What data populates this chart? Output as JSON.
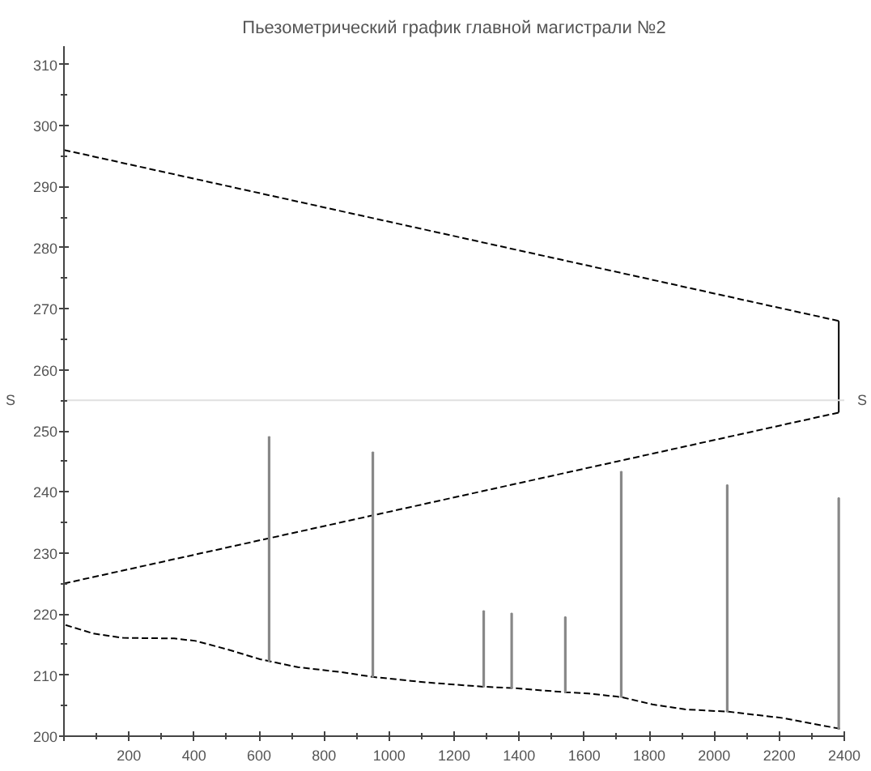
{
  "chart_data": {
    "type": "line",
    "title": "Пьезометрический график главной магистрали №2",
    "series": [
      {
        "color": "#000000",
        "line_style": "dashed",
        "x": [
          0,
          2383
        ],
        "values": [
          296,
          268
        ]
      },
      {
        "color": "#000000",
        "line_style": "dashed",
        "x": [
          0,
          2383
        ],
        "values": [
          225,
          253
        ]
      },
      {
        "color": "#000000",
        "line_style": "solid",
        "x": [
          2383,
          2383
        ],
        "values": [
          253,
          268
        ]
      },
      {
        "color": "#000000",
        "line_style": "dashed",
        "x": [
          5,
          91,
          182,
          339,
          405,
          504,
          603,
          719,
          851,
          950,
          1116,
          1289,
          1377,
          1542,
          1612,
          1714,
          1810,
          1909,
          2045,
          2207,
          2388
        ],
        "values": [
          218.2,
          216.8,
          216.1,
          216,
          215.6,
          214.2,
          212.6,
          211.3,
          210.5,
          209.7,
          208.8,
          208.1,
          207.9,
          207.2,
          207,
          206.4,
          205.2,
          204.4,
          204,
          203,
          201.2
        ]
      },
      {
        "type": "bar",
        "color": "#888888",
        "x": [
          631,
          950,
          1291,
          1377,
          1542,
          1714,
          2040,
          2383
        ],
        "base": [
          212.3,
          209.7,
          208.1,
          207.9,
          207.2,
          206.4,
          204,
          201.2
        ],
        "values": [
          36.7,
          36.8,
          12.4,
          12.2,
          12.3,
          36.9,
          37.1,
          37.8
        ]
      }
    ],
    "ref_lines": [
      {
        "axis": "y",
        "value": 255,
        "label": "S",
        "color": "#e0e0e0"
      }
    ],
    "xlim": [
      0,
      2400
    ],
    "xticks": [
      {
        "value": 0,
        "label": null
      },
      200,
      400,
      600,
      800,
      1000,
      1200,
      1400,
      1600,
      1800,
      2000,
      2200,
      2400
    ],
    "ylim": [
      200,
      313
    ],
    "yticks": [
      200,
      210,
      220,
      230,
      240,
      250,
      260,
      270,
      280,
      290,
      300,
      310
    ],
    "grid": false
  }
}
